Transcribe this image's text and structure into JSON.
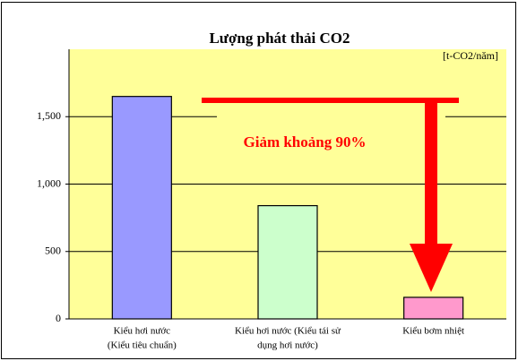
{
  "chart_data": {
    "type": "bar",
    "title": "Lượng phát thải CO2",
    "unit_label": "[t-CO2/năm]",
    "annotation": "Giảm khoảng 90%",
    "categories": [
      [
        "Kiểu hơi nước",
        "(Kiểu tiêu chuẩn)"
      ],
      [
        "Kiểu hơi nước (Kiểu tái sử",
        "dụng hơi nước)"
      ],
      [
        "Kiểu bơm nhiệt"
      ]
    ],
    "values": [
      1650,
      840,
      160
    ],
    "colors": [
      "#9999ff",
      "#ccffcc",
      "#ff99cc"
    ],
    "ylim": [
      0,
      2000
    ],
    "yticks": [
      0,
      500,
      {
        "value": 1000,
        "label": "1,000"
      },
      {
        "value": 1500,
        "label": "1,500"
      }
    ],
    "grid": true
  }
}
